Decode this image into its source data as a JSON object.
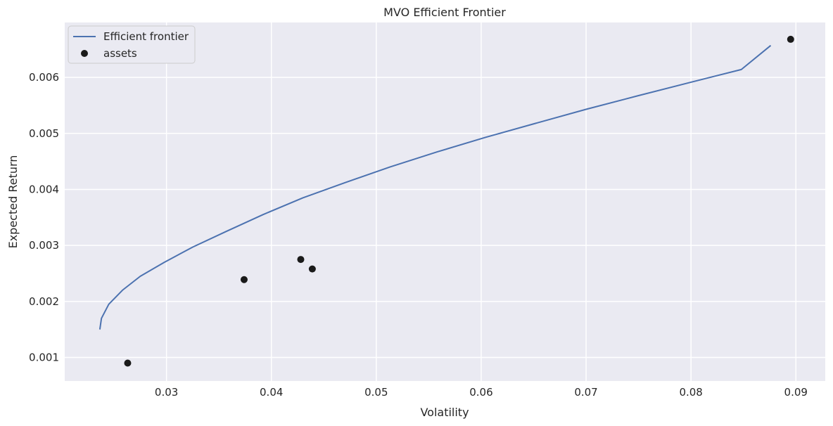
{
  "chart_data": {
    "type": "scatter",
    "title": "MVO Efficient Frontier",
    "xlabel": "Volatility",
    "ylabel": "Expected Return",
    "xlim": [
      0.0203,
      0.0928
    ],
    "ylim": [
      0.00058,
      0.00698
    ],
    "grid": true,
    "legend_position": "top-left",
    "x_ticks": [
      0.03,
      0.04,
      0.05,
      0.06,
      0.07,
      0.08,
      0.09
    ],
    "x_tick_labels": [
      "0.03",
      "0.04",
      "0.05",
      "0.06",
      "0.07",
      "0.08",
      "0.09"
    ],
    "y_ticks": [
      0.001,
      0.002,
      0.003,
      0.004,
      0.005,
      0.006
    ],
    "y_tick_labels": [
      "0.001",
      "0.002",
      "0.003",
      "0.004",
      "0.005",
      "0.006"
    ],
    "series": [
      {
        "name": "Efficient frontier",
        "type": "line",
        "color": "#4c72b0",
        "x": [
          0.02365,
          0.0238,
          0.0245,
          0.0258,
          0.0275,
          0.0298,
          0.0325,
          0.0357,
          0.0392,
          0.043,
          0.047,
          0.0513,
          0.0558,
          0.0604,
          0.0652,
          0.07,
          0.0749,
          0.0799,
          0.0848,
          0.0876
        ],
        "y": [
          0.0015,
          0.0017,
          0.00195,
          0.0022,
          0.00245,
          0.0027,
          0.00297,
          0.00325,
          0.00355,
          0.00385,
          0.00412,
          0.0044,
          0.00467,
          0.00493,
          0.00518,
          0.00543,
          0.00567,
          0.00591,
          0.00614,
          0.00657
        ]
      },
      {
        "name": "assets",
        "type": "scatter",
        "color": "#1a1a1a",
        "x": [
          0.0263,
          0.0374,
          0.0428,
          0.0439,
          0.0895
        ],
        "y": [
          0.0009,
          0.00239,
          0.00275,
          0.00258,
          0.00668
        ]
      }
    ]
  },
  "colors": {
    "plot_background": "#eaeaf2",
    "grid": "#ffffff",
    "text": "#262626"
  }
}
